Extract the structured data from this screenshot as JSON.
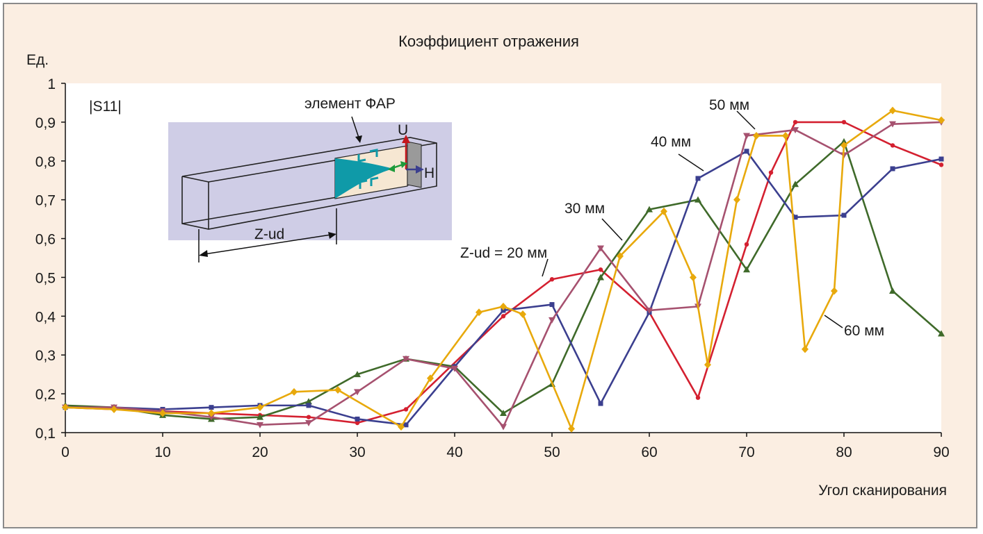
{
  "chart_data": {
    "type": "line",
    "title": "Коэффициент отражения",
    "ylabel": "Ед.",
    "xlabel": "Угол сканирования",
    "panel_label": "|S11|",
    "xlim": [
      0,
      90
    ],
    "ylim": [
      0.1,
      1.0
    ],
    "x_ticks": [
      0,
      10,
      20,
      30,
      40,
      50,
      60,
      70,
      80,
      90
    ],
    "x_tick_labels": [
      "0",
      "10",
      "20",
      "30",
      "40",
      "50",
      "60",
      "70",
      "80",
      "90"
    ],
    "y_ticks": [
      0.1,
      0.2,
      0.3,
      0.4,
      0.5,
      0.6,
      0.7,
      0.8,
      0.9,
      1.0
    ],
    "y_tick_labels": [
      "0,1",
      "0,2",
      "0,3",
      "0,4",
      "0,5",
      "0,6",
      "0,7",
      "0,8",
      "0,9",
      "1"
    ],
    "grid": false,
    "series": [
      {
        "name": "Z-ud = 20 мм",
        "color": "#d42030",
        "marker": "circle",
        "x": [
          0,
          5,
          10,
          15,
          20,
          25,
          30,
          35,
          45,
          50,
          55,
          60,
          65,
          70,
          72.5,
          75,
          80,
          85,
          90
        ],
        "y": [
          0.165,
          0.16,
          0.155,
          0.15,
          0.145,
          0.14,
          0.125,
          0.16,
          0.4,
          0.495,
          0.52,
          0.41,
          0.19,
          0.585,
          0.77,
          0.9,
          0.9,
          0.84,
          0.79
        ]
      },
      {
        "name": "30 мм",
        "color": "#3f6a2a",
        "marker": "triangle-up",
        "x": [
          0,
          5,
          10,
          15,
          20,
          25,
          30,
          35,
          40,
          45,
          50,
          55,
          60,
          65,
          70,
          75,
          80,
          85,
          90
        ],
        "y": [
          0.17,
          0.165,
          0.145,
          0.135,
          0.14,
          0.18,
          0.25,
          0.29,
          0.27,
          0.15,
          0.225,
          0.5,
          0.675,
          0.7,
          0.52,
          0.74,
          0.85,
          0.465,
          0.355
        ]
      },
      {
        "name": "40 мм",
        "color": "#3b3f8f",
        "marker": "square",
        "x": [
          0,
          5,
          10,
          15,
          20,
          25,
          30,
          35,
          40,
          45,
          50,
          55,
          60,
          65,
          70,
          75,
          80,
          85,
          90
        ],
        "y": [
          0.165,
          0.165,
          0.16,
          0.165,
          0.17,
          0.17,
          0.135,
          0.12,
          0.27,
          0.415,
          0.43,
          0.175,
          0.41,
          0.755,
          0.825,
          0.655,
          0.66,
          0.78,
          0.805
        ]
      },
      {
        "name": "50 мм",
        "color": "#a6516f",
        "marker": "triangle-down",
        "x": [
          0,
          5,
          10,
          15,
          20,
          25,
          30,
          35,
          40,
          45,
          50,
          55,
          60,
          65,
          70,
          75,
          80,
          85,
          90
        ],
        "y": [
          0.165,
          0.165,
          0.155,
          0.14,
          0.12,
          0.125,
          0.205,
          0.29,
          0.265,
          0.115,
          0.39,
          0.575,
          0.415,
          0.425,
          0.865,
          0.88,
          0.815,
          0.895,
          0.9
        ]
      },
      {
        "name": "60 мм",
        "color": "#e8a90c",
        "marker": "diamond",
        "x": [
          0,
          5,
          10,
          15,
          20,
          23.5,
          28,
          34.5,
          37.5,
          42.5,
          45,
          47,
          52,
          57,
          61.5,
          64.5,
          66,
          69,
          71,
          74,
          76,
          79,
          80,
          85,
          90
        ],
        "y": [
          0.165,
          0.16,
          0.15,
          0.15,
          0.165,
          0.205,
          0.21,
          0.115,
          0.24,
          0.41,
          0.425,
          0.405,
          0.11,
          0.555,
          0.67,
          0.5,
          0.275,
          0.7,
          0.865,
          0.865,
          0.315,
          0.465,
          0.84,
          0.93,
          0.905
        ]
      }
    ],
    "annotations": [
      {
        "text": "Z-ud = 20 мм",
        "series": "Z-ud = 20 мм"
      },
      {
        "text": "30 мм",
        "series": "30 мм"
      },
      {
        "text": "40 мм",
        "series": "40 мм"
      },
      {
        "text": "50 мм",
        "series": "50 мм"
      },
      {
        "text": "60 мм",
        "series": "60 мм"
      }
    ],
    "inset": {
      "label_element": "элемент ФАР",
      "label_depth": "Z-ud",
      "label_u": "U",
      "label_h": "H",
      "colors": {
        "background": "#cfcde6",
        "element_fill": "#f6e7d2",
        "taper": "#0f9aa8",
        "u_arrow": "#c4161c",
        "h_arrow": "#3b3f8f",
        "e_arrow": "#1e9a3a",
        "wall": "#9a9a9a"
      }
    }
  }
}
